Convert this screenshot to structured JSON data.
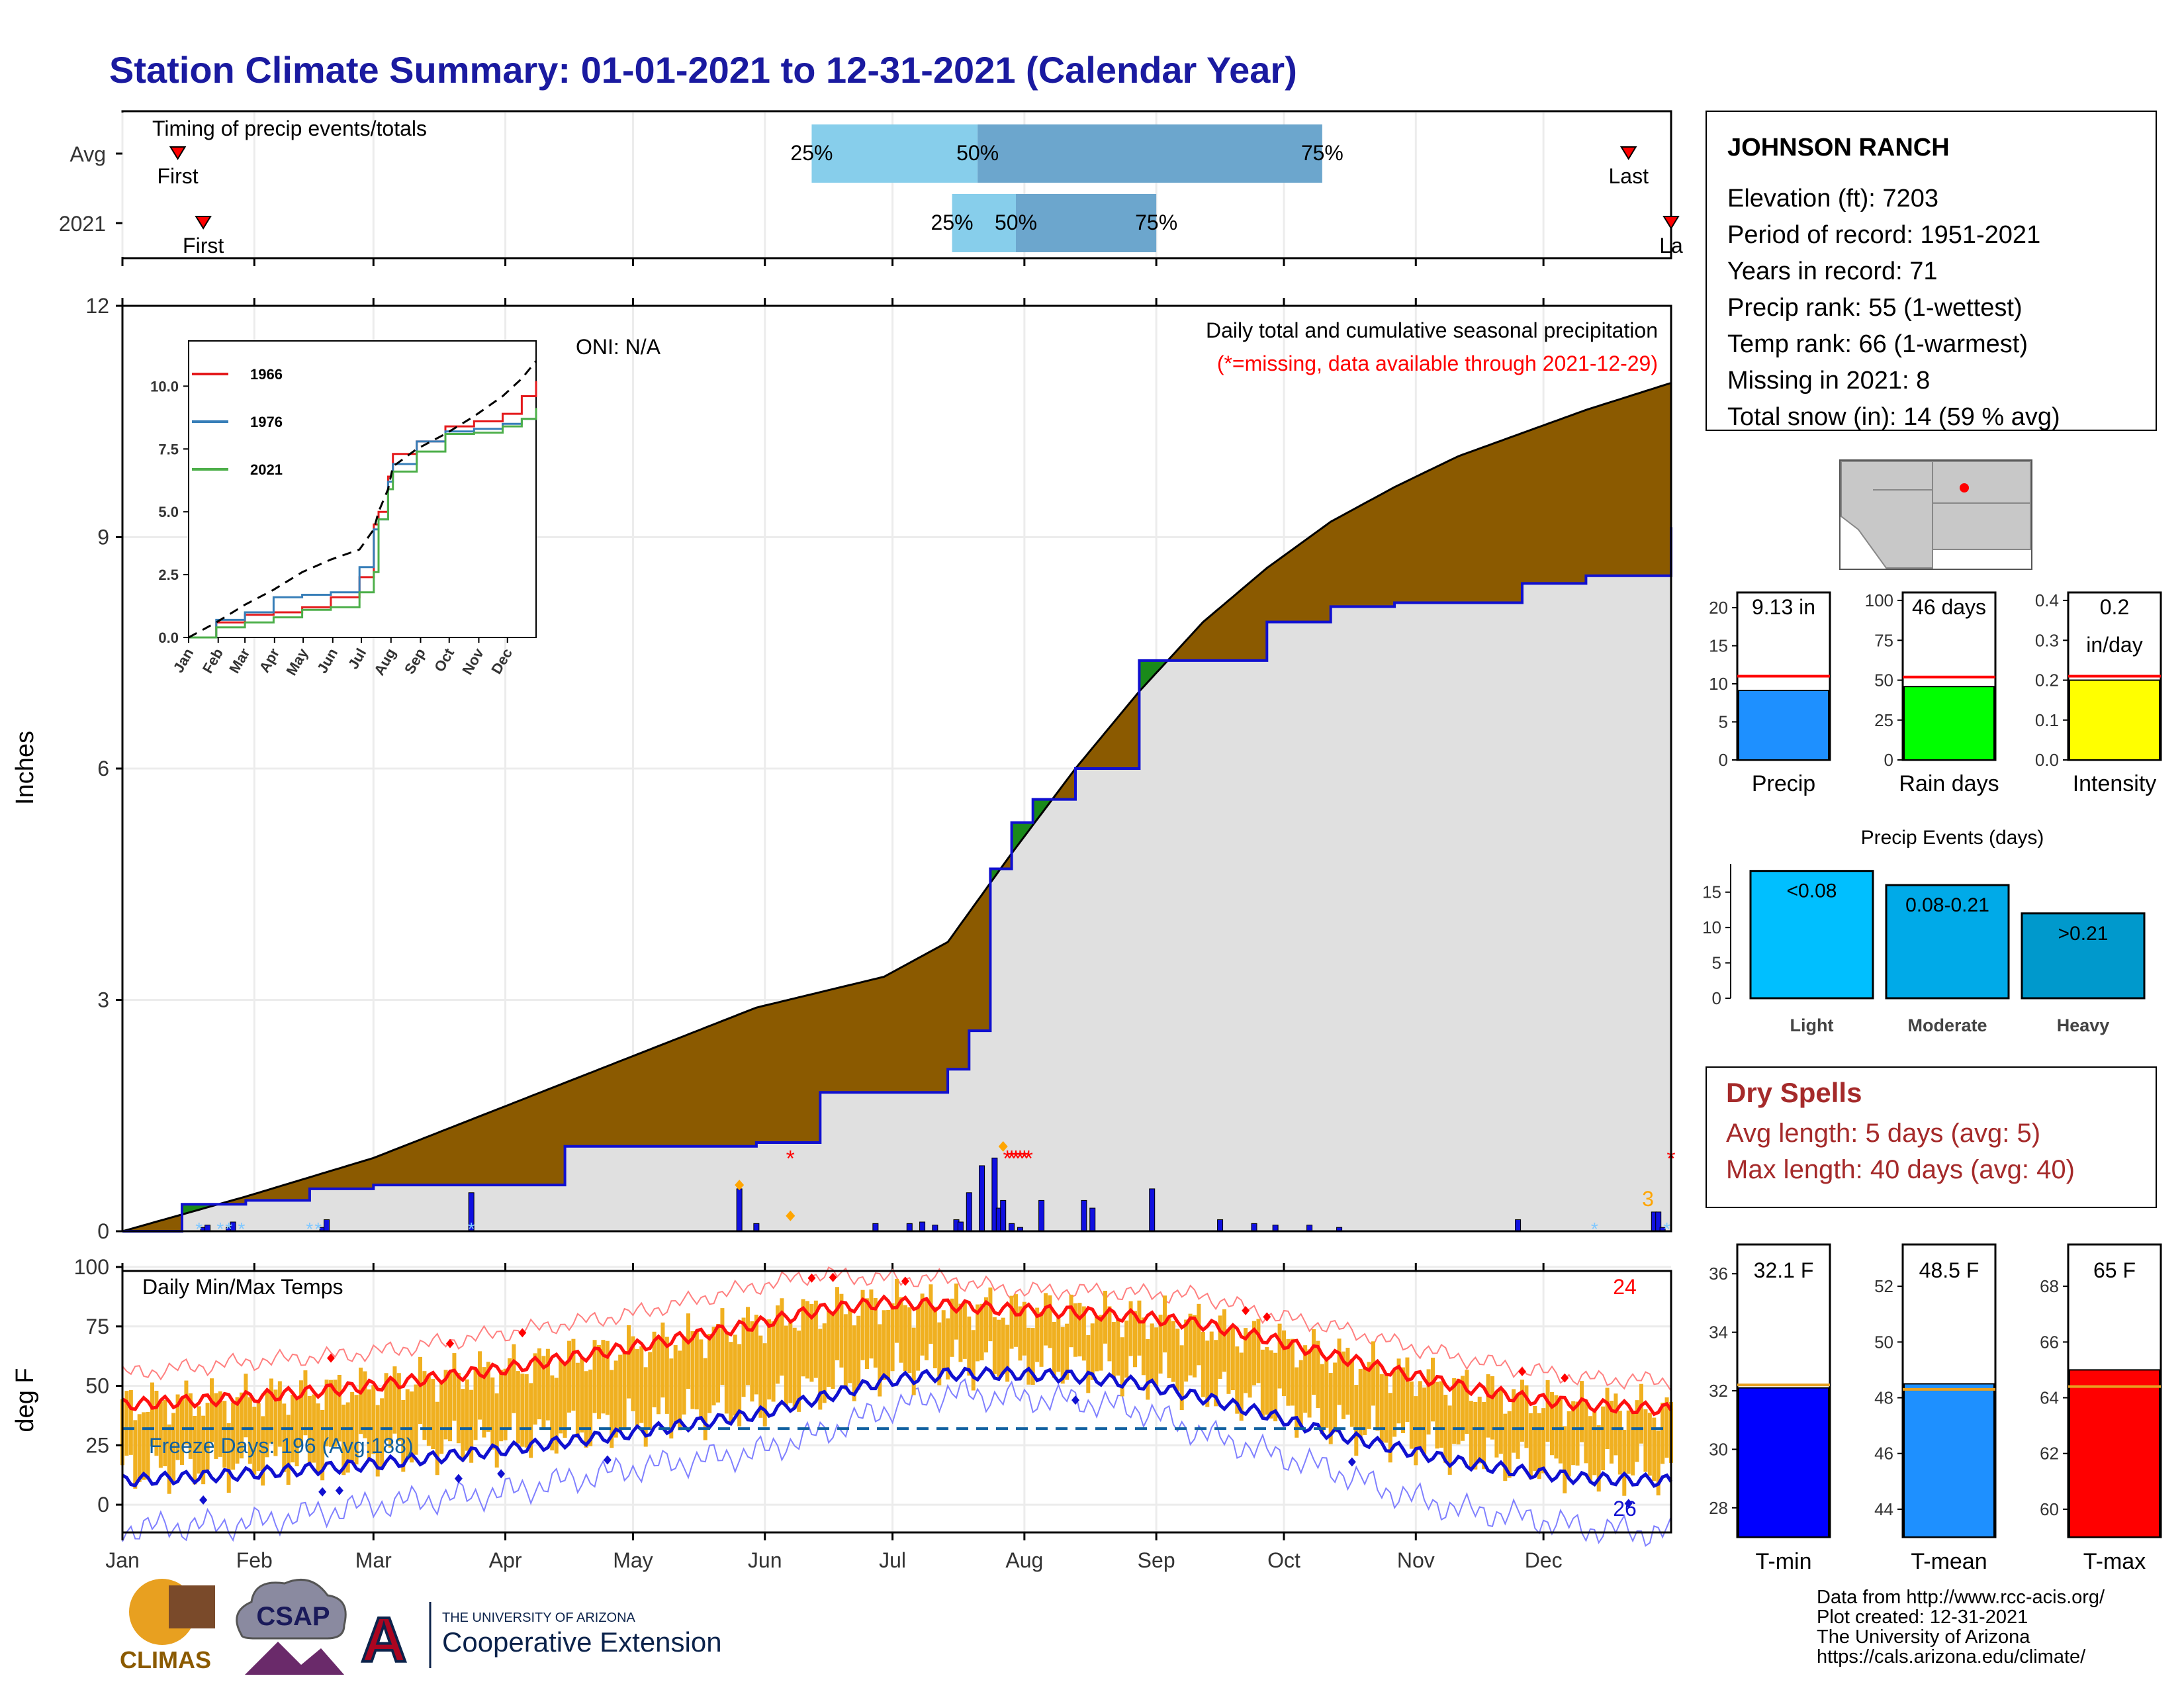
{
  "page_title": "Station Climate Summary: 01-01-2021 to 12-31-2021 (Calendar Year)",
  "colors": {
    "title": "#1a1aa0",
    "cum_fill": "#8b5a00",
    "normal_fill": "#e0e0e0",
    "normal_line": "#1010d0",
    "ahead_fill": "#1a8a1a",
    "daily_bar": "#1010e0",
    "temp_bar": "#f0b020",
    "tmax_line": "#ff1010",
    "tmin_line": "#1010d0",
    "missing": "#ff0000",
    "snow": "#80c8ff",
    "freeze_line": "#1060a0",
    "pct_light": "#87ceeb",
    "pct_dark": "#6ca6cd",
    "dry": "#a52a2a"
  },
  "timing": {
    "title": "Timing of precip events/totals",
    "rows": [
      {
        "label": "Avg",
        "first": "First",
        "last": "Last",
        "p25": "25%",
        "p50": "50%",
        "p75": "75%",
        "first_day": 14,
        "last_day": 355,
        "p25_day": 163,
        "p50_day": 202,
        "p75_day": 283
      },
      {
        "label": "2021",
        "first": "First",
        "last": "La",
        "p25": "25%",
        "p50": "50%",
        "p75": "75%",
        "first_day": 20,
        "last_day": 365,
        "p25_day": 196,
        "p50_day": 211,
        "p75_day": 244
      }
    ]
  },
  "precip": {
    "ylabel": "Inches",
    "yticks": [
      "0",
      "3",
      "6",
      "9",
      "12"
    ],
    "legend_title": "Daily total and cumulative seasonal precipitation",
    "legend_sub": "(*=missing, data available through 2021-12-29)",
    "oni": "ONI: N/A",
    "snow_count": "3"
  },
  "inset": {
    "yticks": [
      "0.0",
      "2.5",
      "5.0",
      "7.5",
      "10.0"
    ],
    "months": [
      "Jan",
      "Feb",
      "Mar",
      "Apr",
      "May",
      "Jun",
      "Jul",
      "Aug",
      "Sep",
      "Oct",
      "Nov",
      "Dec"
    ],
    "series": [
      {
        "name": "1966",
        "color": "#e41a1c"
      },
      {
        "name": "1976",
        "color": "#377eb8"
      },
      {
        "name": "2021",
        "color": "#4daf4a"
      }
    ]
  },
  "temps": {
    "ylabel": "deg F",
    "title": "Daily Min/Max Temps",
    "yticks": [
      "0",
      "25",
      "50",
      "75",
      "100"
    ],
    "freeze": "Freeze Days: 196 (Avg:188)",
    "max_count": "24",
    "min_count": "26"
  },
  "months": [
    "Jan",
    "Feb",
    "Mar",
    "Apr",
    "May",
    "Jun",
    "Jul",
    "Aug",
    "Sep",
    "Oct",
    "Nov",
    "Dec"
  ],
  "station": {
    "name": "JOHNSON RANCH",
    "lines": [
      "Elevation (ft): 7203",
      "Period of record: 1951-2021",
      "Years in record: 71",
      "Precip rank: 55 (1-wettest)",
      "Temp rank: 66 (1-warmest)",
      "Missing in 2021: 8",
      "Total snow (in): 14 (59 % avg)"
    ]
  },
  "gauges": [
    {
      "label": "Precip",
      "value_text": "9.13 in",
      "value": 9.13,
      "avg": 11.0,
      "ymax": 22,
      "ticks": [
        "0",
        "5",
        "10",
        "15",
        "20"
      ],
      "color": "#1e90ff"
    },
    {
      "label": "Rain days",
      "value_text": "46 days",
      "value": 46,
      "avg": 52,
      "ymax": 105,
      "ticks": [
        "0",
        "25",
        "50",
        "75",
        "100"
      ],
      "color": "#00ff00"
    },
    {
      "label": "Intensity",
      "value_text": "0.2",
      "value_text2": "in/day",
      "value": 0.2,
      "avg": 0.21,
      "ymax": 0.42,
      "ticks": [
        "0.0",
        "0.1",
        "0.2",
        "0.3",
        "0.4"
      ],
      "color": "#ffff00"
    }
  ],
  "events": {
    "title": "Precip Events (days)",
    "ticks": [
      "0",
      "5",
      "10",
      "15"
    ],
    "bars": [
      {
        "cat": "Light",
        "label": "<0.08",
        "value": 18,
        "color": "#00bfff"
      },
      {
        "cat": "Moderate",
        "label": "0.08-0.21",
        "value": 16,
        "color": "#00aae8"
      },
      {
        "cat": "Heavy",
        "label": ">0.21",
        "value": 12,
        "color": "#0099cc"
      }
    ]
  },
  "dry": {
    "title": "Dry Spells",
    "avg": "Avg length: 5 days (avg: 5)",
    "max": "Max length: 40 days (avg: 40)"
  },
  "temp_gauges": [
    {
      "label": "T-min",
      "value_text": "32.1 F",
      "value": 32.1,
      "avg": 32.2,
      "ymin": 27,
      "ymax": 37,
      "ticks": [
        "28",
        "30",
        "32",
        "34",
        "36"
      ],
      "color": "#0000ff"
    },
    {
      "label": "T-mean",
      "value_text": "48.5 F",
      "value": 48.5,
      "avg": 48.3,
      "ymin": 43,
      "ymax": 53.5,
      "ticks": [
        "44",
        "46",
        "48",
        "50",
        "52"
      ],
      "color": "#1e90ff"
    },
    {
      "label": "T-max",
      "value_text": "65 F",
      "value": 65,
      "avg": 64.4,
      "ymin": 59,
      "ymax": 69.5,
      "ticks": [
        "60",
        "62",
        "64",
        "66",
        "68"
      ],
      "color": "#ff0000"
    }
  ],
  "footer": {
    "credits": [
      "Data from http://www.rcc-acis.org/",
      "Plot created: 12-31-2021",
      "The University of Arizona",
      "https://cals.arizona.edu/climate/"
    ],
    "climas": "CLIMAS",
    "csap": "CSAP",
    "ua_small": "THE UNIVERSITY OF ARIZONA",
    "ua_big": "Cooperative Extension"
  },
  "chart_data": [
    {
      "type": "area",
      "title": "Daily total and cumulative seasonal precipitation",
      "ylabel": "Inches",
      "ylim": [
        0,
        12
      ],
      "x_unit": "day of year",
      "cumulative_2021": {
        "x": [
          1,
          15,
          30,
          45,
          60,
          75,
          90,
          105,
          120,
          135,
          150,
          165,
          180,
          195,
          200,
          205,
          210,
          215,
          225,
          240,
          255,
          270,
          285,
          300,
          315,
          330,
          345,
          365
        ],
        "y": [
          0.0,
          0.35,
          0.4,
          0.55,
          0.6,
          0.6,
          0.6,
          1.1,
          1.1,
          1.1,
          1.15,
          1.8,
          1.8,
          2.1,
          2.6,
          4.7,
          5.3,
          5.6,
          6.0,
          7.4,
          7.4,
          7.9,
          8.1,
          8.15,
          8.15,
          8.4,
          8.5,
          9.13
        ]
      },
      "cumulative_normal": {
        "x": [
          1,
          30,
          60,
          90,
          120,
          150,
          180,
          195,
          210,
          225,
          240,
          255,
          270,
          285,
          300,
          315,
          330,
          345,
          365
        ],
        "y": [
          0.0,
          0.45,
          0.95,
          1.6,
          2.25,
          2.9,
          3.3,
          3.75,
          4.9,
          6.0,
          7.0,
          7.9,
          8.6,
          9.2,
          9.65,
          10.05,
          10.35,
          10.65,
          11.0
        ]
      },
      "daily_bars": {
        "x": [
          20,
          21,
          26,
          27,
          48,
          49,
          83,
          146,
          150,
          178,
          186,
          189,
          192,
          197,
          198,
          200,
          203,
          206,
          207,
          208,
          210,
          212,
          217,
          227,
          229,
          243,
          259,
          267,
          272,
          280,
          287,
          329,
          361,
          362,
          363
        ],
        "y": [
          0.05,
          0.08,
          0.05,
          0.12,
          0.05,
          0.15,
          0.5,
          0.55,
          0.1,
          0.1,
          0.1,
          0.12,
          0.08,
          0.15,
          0.12,
          0.5,
          0.85,
          0.95,
          0.3,
          0.4,
          0.1,
          0.05,
          0.4,
          0.4,
          0.3,
          0.55,
          0.15,
          0.1,
          0.08,
          0.08,
          0.05,
          0.15,
          0.25,
          0.25,
          0.05
        ]
      },
      "missing_days": [
        158,
        209,
        210,
        211,
        212,
        213,
        214,
        365
      ],
      "snow_days": [
        19,
        24,
        26,
        29,
        45,
        47,
        83,
        347,
        364
      ]
    },
    {
      "type": "line",
      "title": "",
      "ylim": [
        0,
        11.8
      ],
      "xlabel": "",
      "categories": [
        "Jan",
        "Feb",
        "Mar",
        "Apr",
        "May",
        "Jun",
        "Jul",
        "Aug",
        "Sep",
        "Oct",
        "Nov",
        "Dec"
      ],
      "x_unit": "day of year",
      "x": [
        1,
        30,
        60,
        90,
        120,
        150,
        180,
        195,
        200,
        210,
        215,
        240,
        270,
        300,
        330,
        350,
        365
      ],
      "series": [
        {
          "name": "1966",
          "values": [
            0,
            0.6,
            0.9,
            1.0,
            1.2,
            1.6,
            2.4,
            4.5,
            5.0,
            6.4,
            7.3,
            7.8,
            8.4,
            8.6,
            8.9,
            9.6,
            10.2
          ]
        },
        {
          "name": "1976",
          "values": [
            0,
            0.7,
            1.0,
            1.6,
            1.7,
            1.8,
            2.8,
            4.3,
            4.7,
            6.2,
            6.9,
            7.8,
            8.2,
            8.3,
            8.5,
            8.7,
            8.8
          ]
        },
        {
          "name": "2021",
          "values": [
            0,
            0.4,
            0.6,
            0.8,
            1.1,
            1.2,
            1.8,
            2.6,
            4.7,
            5.9,
            6.6,
            7.4,
            8.1,
            8.15,
            8.4,
            8.7,
            9.13
          ]
        },
        {
          "name": "normal",
          "values": [
            0,
            0.6,
            1.3,
            1.9,
            2.6,
            3.1,
            3.5,
            4.3,
            5.0,
            5.9,
            6.8,
            7.5,
            8.1,
            8.8,
            9.6,
            10.3,
            11.0
          ]
        }
      ]
    },
    {
      "type": "line",
      "title": "Daily Min/Max Temps",
      "ylabel": "deg F",
      "ylim": [
        -10,
        100
      ],
      "x_unit": "day of year",
      "x": [
        1,
        30,
        60,
        90,
        120,
        150,
        165,
        180,
        195,
        210,
        225,
        240,
        255,
        270,
        285,
        300,
        315,
        330,
        345,
        365
      ],
      "series": [
        {
          "name": "normal max",
          "values": [
            42,
            45,
            50,
            57,
            66,
            76,
            82,
            85,
            84,
            82,
            81,
            79,
            76,
            70,
            63,
            56,
            50,
            45,
            42,
            40
          ]
        },
        {
          "name": "normal min",
          "values": [
            10,
            13,
            17,
            23,
            30,
            38,
            45,
            52,
            55,
            55,
            54,
            51,
            45,
            38,
            30,
            24,
            18,
            14,
            11,
            10
          ]
        },
        {
          "name": "record high",
          "values": [
            55,
            60,
            64,
            72,
            80,
            92,
            97,
            95,
            95,
            90,
            90,
            89,
            88,
            80,
            75,
            68,
            62,
            57,
            53,
            52
          ]
        },
        {
          "name": "record low",
          "values": [
            -10,
            -8,
            0,
            5,
            15,
            22,
            30,
            40,
            47,
            45,
            44,
            40,
            30,
            22,
            15,
            5,
            -2,
            -5,
            -10,
            -12
          ]
        }
      ],
      "freeze_threshold": 32,
      "freeze_days": 196
    },
    {
      "type": "bar",
      "title": "Precip Events (days)",
      "categories": [
        "Light",
        "Moderate",
        "Heavy"
      ],
      "values": [
        18,
        16,
        12
      ],
      "ylim": [
        0,
        19
      ]
    },
    {
      "type": "bar",
      "title": "",
      "categories": [
        "Precip",
        "Rain days",
        "Intensity"
      ],
      "values": [
        9.13,
        46,
        0.2
      ],
      "averages": [
        11.0,
        52,
        0.21
      ]
    },
    {
      "type": "bar",
      "title": "",
      "categories": [
        "T-min",
        "T-mean",
        "T-max"
      ],
      "values": [
        32.1,
        48.5,
        65
      ],
      "averages": [
        32.2,
        48.3,
        64.4
      ]
    }
  ]
}
